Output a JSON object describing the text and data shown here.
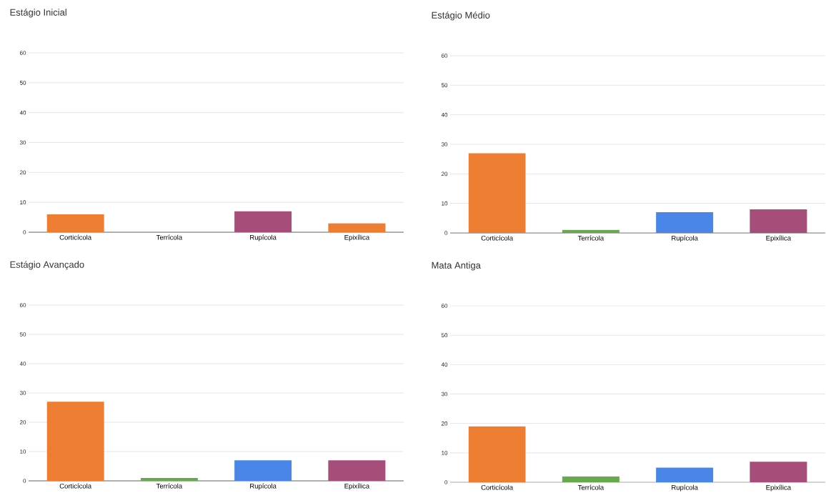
{
  "chart_data": [
    {
      "type": "bar",
      "title": "Estágio Inicial",
      "categories": [
        "Corticícola",
        "Terrícola",
        "Rupícola",
        "Epixílica"
      ],
      "values": [
        6,
        0,
        7,
        3
      ],
      "colors": [
        "#ed7d31",
        "#6aa84f",
        "#a64d79",
        "#ed7d31"
      ],
      "ylim": [
        0,
        60
      ],
      "yticks": [
        0,
        10,
        20,
        30,
        40,
        50,
        60
      ],
      "grid": "y"
    },
    {
      "type": "bar",
      "title": "Estágio Médio",
      "categories": [
        "Corticícola",
        "Terrícola",
        "Rupícola",
        "Epixílica"
      ],
      "values": [
        27,
        1,
        7,
        8
      ],
      "colors": [
        "#ed7d31",
        "#6aa84f",
        "#4a86e8",
        "#a64d79"
      ],
      "ylim": [
        0,
        60
      ],
      "yticks": [
        0,
        10,
        20,
        30,
        40,
        50,
        60
      ],
      "grid": "y"
    },
    {
      "type": "bar",
      "title": "Estágio Avançado",
      "categories": [
        "Corticícola",
        "Terrícola",
        "Rupícola",
        "Epixílica"
      ],
      "values": [
        27,
        1,
        7,
        7
      ],
      "colors": [
        "#ed7d31",
        "#6aa84f",
        "#4a86e8",
        "#a64d79"
      ],
      "ylim": [
        0,
        60
      ],
      "yticks": [
        0,
        10,
        20,
        30,
        40,
        50,
        60
      ],
      "grid": "y"
    },
    {
      "type": "bar",
      "title": "Mata Antiga",
      "categories": [
        "Corticícola",
        "Terrícola",
        "Rupícola",
        "Epixílica"
      ],
      "values": [
        19,
        2,
        5,
        7
      ],
      "colors": [
        "#ed7d31",
        "#6aa84f",
        "#4a86e8",
        "#a64d79"
      ],
      "ylim": [
        0,
        60
      ],
      "yticks": [
        0,
        10,
        20,
        30,
        40,
        50,
        60
      ],
      "grid": "y"
    }
  ]
}
